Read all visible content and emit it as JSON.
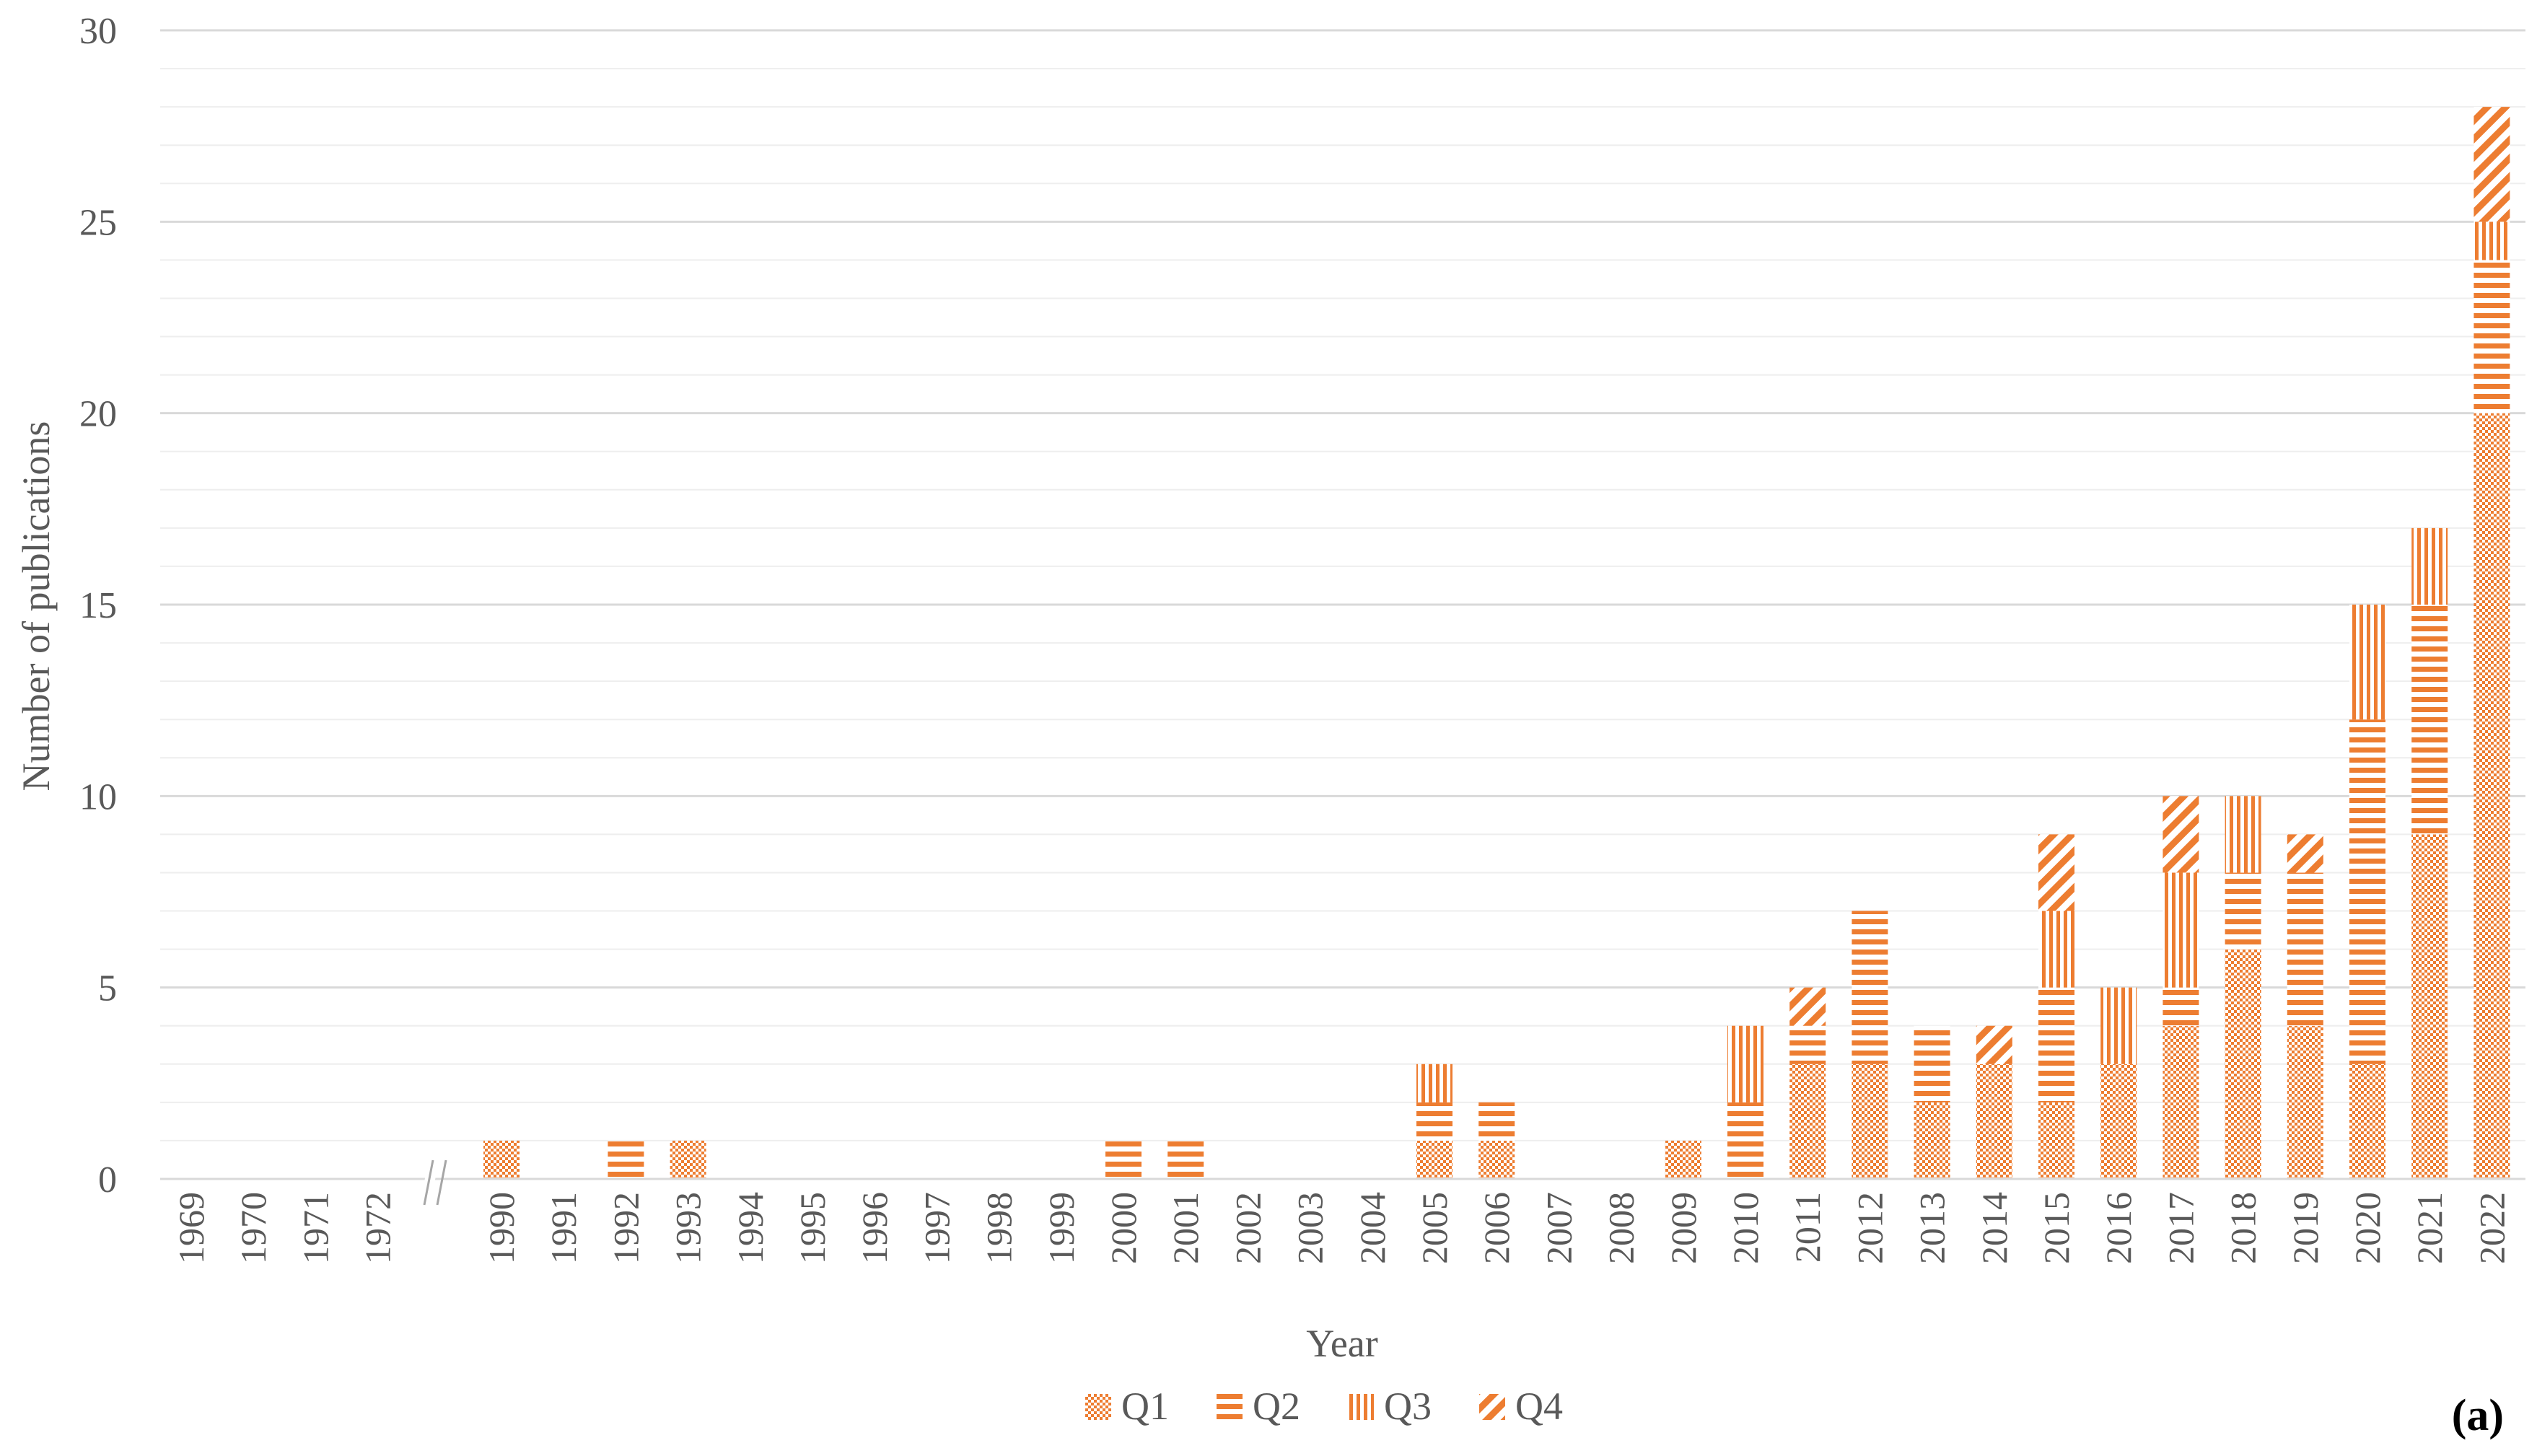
{
  "chart_data": {
    "type": "bar",
    "stacked": true,
    "panel_label": "(a)",
    "xlabel": "Year",
    "ylabel": "Number of publications",
    "ylim": [
      0,
      30
    ],
    "y_ticks": [
      "0",
      "5",
      "10",
      "15",
      "20",
      "25",
      "30"
    ],
    "major_grid_step": 5,
    "minor_grid_step": 1,
    "axis_break": "//",
    "axis_break_after": "1972",
    "legend_position": "bottom-center",
    "categories": [
      "1969",
      "1970",
      "1971",
      "1972",
      "1990",
      "1991",
      "1992",
      "1993",
      "1994",
      "1995",
      "1996",
      "1997",
      "1998",
      "1999",
      "2000",
      "2001",
      "2002",
      "2003",
      "2004",
      "2005",
      "2006",
      "2007",
      "2008",
      "2009",
      "2010",
      "2011",
      "2012",
      "2013",
      "2014",
      "2015",
      "2016",
      "2017",
      "2018",
      "2019",
      "2020",
      "2021",
      "2022"
    ],
    "series": [
      {
        "name": "Q1",
        "pattern": "checker",
        "values": [
          0,
          0,
          0,
          0,
          1,
          0,
          0,
          1,
          0,
          0,
          0,
          0,
          0,
          0,
          0,
          0,
          0,
          0,
          0,
          1,
          1,
          0,
          0,
          1,
          0,
          3,
          3,
          2,
          3,
          2,
          3,
          4,
          6,
          4,
          3,
          9,
          20
        ]
      },
      {
        "name": "Q2",
        "pattern": "horizontal",
        "values": [
          0,
          0,
          0,
          0,
          0,
          0,
          1,
          0,
          0,
          0,
          0,
          0,
          0,
          0,
          1,
          1,
          0,
          0,
          0,
          1,
          1,
          0,
          0,
          0,
          2,
          1,
          4,
          2,
          0,
          3,
          0,
          1,
          2,
          4,
          9,
          6,
          4
        ]
      },
      {
        "name": "Q3",
        "pattern": "vertical",
        "values": [
          0,
          0,
          0,
          0,
          0,
          0,
          0,
          0,
          0,
          0,
          0,
          0,
          0,
          0,
          0,
          0,
          0,
          0,
          0,
          1,
          0,
          0,
          0,
          0,
          2,
          0,
          0,
          0,
          0,
          2,
          2,
          3,
          2,
          0,
          3,
          2,
          1
        ]
      },
      {
        "name": "Q4",
        "pattern": "diagonal",
        "values": [
          0,
          0,
          0,
          0,
          0,
          0,
          0,
          0,
          0,
          0,
          0,
          0,
          0,
          0,
          0,
          0,
          0,
          0,
          0,
          0,
          0,
          0,
          0,
          0,
          0,
          1,
          0,
          0,
          1,
          2,
          0,
          2,
          0,
          1,
          0,
          0,
          3
        ]
      }
    ],
    "colors": {
      "bar": "#ed7d31",
      "grid_major": "#d9d9d9",
      "grid_minor": "#eeeeee",
      "text": "#595959"
    }
  }
}
